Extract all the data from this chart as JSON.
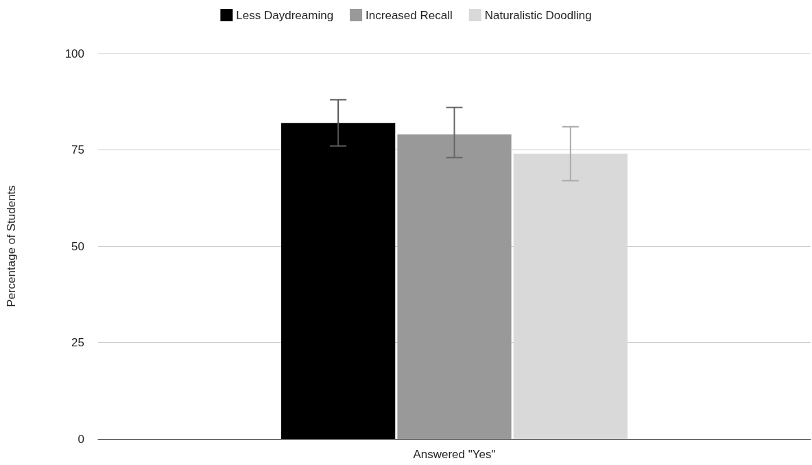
{
  "chart_data": {
    "type": "bar",
    "ylabel": "Percentage of Students",
    "categories": [
      "Answered \"Yes\""
    ],
    "series": [
      {
        "name": "Less Daydreaming",
        "color": "#000000",
        "values": [
          82
        ],
        "errors": [
          [
            76,
            88
          ]
        ]
      },
      {
        "name": "Increased Recall",
        "color": "#999999",
        "values": [
          79
        ],
        "errors": [
          [
            73,
            86
          ]
        ]
      },
      {
        "name": "Naturalistic Doodling",
        "color": "#d9d9d9",
        "values": [
          74
        ],
        "errors": [
          [
            67,
            81
          ]
        ]
      }
    ],
    "ylim": [
      0,
      100
    ],
    "yticks": [
      0,
      25,
      50,
      75,
      100
    ],
    "grid": "y",
    "legend": "top"
  }
}
